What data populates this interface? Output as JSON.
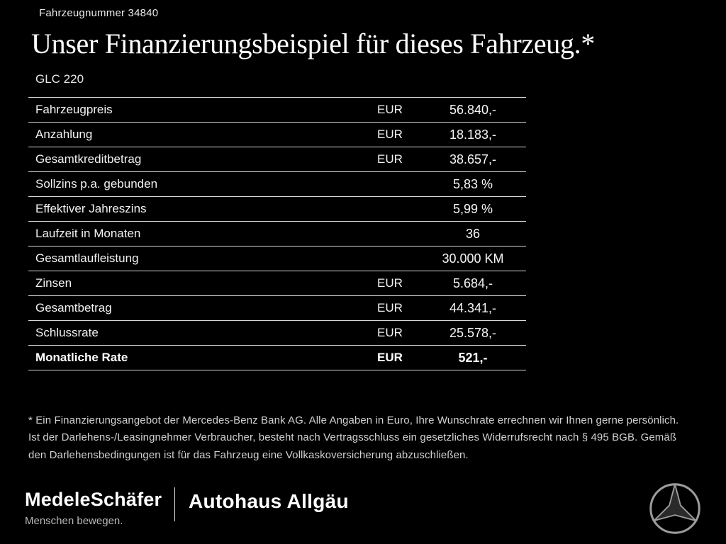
{
  "header": {
    "vehicle_number": "Fahrzeugnummer 34840",
    "title": "Unser Finanzierungsbeispiel für dieses Fahrzeug.*",
    "model": "GLC 220"
  },
  "finance_table": {
    "rows": [
      {
        "label": "Fahrzeugpreis",
        "currency": "EUR",
        "value": "56.840,-",
        "bold": false
      },
      {
        "label": "Anzahlung",
        "currency": "EUR",
        "value": "18.183,-",
        "bold": false
      },
      {
        "label": "Gesamtkreditbetrag",
        "currency": "EUR",
        "value": "38.657,-",
        "bold": false
      },
      {
        "label": "Sollzins p.a. gebunden",
        "currency": "",
        "value": "5,83 %",
        "bold": false
      },
      {
        "label": "Effektiver Jahreszins",
        "currency": "",
        "value": "5,99 %",
        "bold": false
      },
      {
        "label": "Laufzeit in Monaten",
        "currency": "",
        "value": "36",
        "bold": false
      },
      {
        "label": "Gesamtlaufleistung",
        "currency": "",
        "value": "30.000 KM",
        "bold": false
      },
      {
        "label": "Zinsen",
        "currency": "EUR",
        "value": "5.684,-",
        "bold": false
      },
      {
        "label": "Gesamtbetrag",
        "currency": "EUR",
        "value": "44.341,-",
        "bold": false
      },
      {
        "label": "Schlussrate",
        "currency": "EUR",
        "value": "25.578,-",
        "bold": false
      },
      {
        "label": "Monatliche Rate",
        "currency": "EUR",
        "value": "521,-",
        "bold": true
      }
    ]
  },
  "footnote": "* Ein Finanzierungsangebot der Mercedes-Benz Bank AG. Alle Angaben in Euro, Ihre Wunschrate errechnen wir Ihnen gerne persönlich. Ist der Darlehens-/Leasingnehmer Verbraucher, besteht nach Vertragsschluss ein gesetzliches Widerrufsrecht nach § 495 BGB. Gemäß den Darlehensbedingungen ist für das Fahrzeug eine Vollkaskoversicherung abzuschließen.",
  "footer": {
    "dealer_name": "MedeleSchäfer",
    "dealer_tagline": "Menschen bewegen.",
    "dealer_name_2": "Autohaus Allgäu",
    "brand_logo_name": "mercedes-star-icon"
  },
  "colors": {
    "background": "#000000",
    "text": "#ffffff",
    "line": "#d8d8d8",
    "muted": "#b9b9b9"
  }
}
